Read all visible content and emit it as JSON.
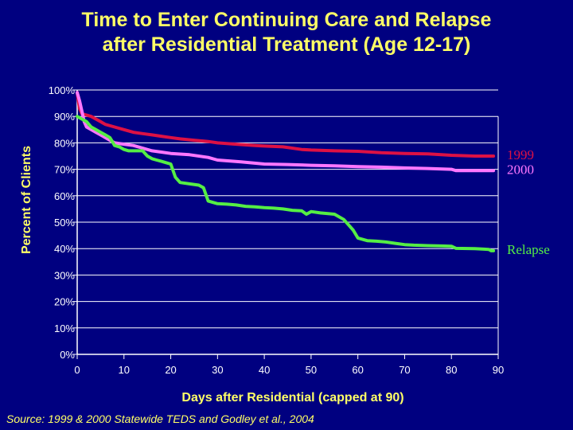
{
  "chart_data": {
    "type": "line",
    "title": [
      "Time to Enter Continuing Care and Relapse",
      "after Residential Treatment (Age 12-17)"
    ],
    "xlabel": "Days after Residential (capped at 90)",
    "ylabel": "Percent of Clients",
    "xlim": [
      0,
      90
    ],
    "ylim": [
      0,
      100
    ],
    "x_ticks": [
      0,
      10,
      20,
      30,
      40,
      50,
      60,
      70,
      80,
      90
    ],
    "y_ticks": [
      {
        "value": 0,
        "label": "0%"
      },
      {
        "value": 10,
        "label": "10%"
      },
      {
        "value": 20,
        "label": "20%"
      },
      {
        "value": 30,
        "label": "30%"
      },
      {
        "value": 40,
        "label": "40%"
      },
      {
        "value": 50,
        "label": "50%"
      },
      {
        "value": 60,
        "label": "60%"
      },
      {
        "value": 70,
        "label": "70%"
      },
      {
        "value": 80,
        "label": "80%"
      },
      {
        "value": 90,
        "label": "90%"
      },
      {
        "value": 100,
        "label": "100%"
      }
    ],
    "series": [
      {
        "name": "1999",
        "color": "#dd1144",
        "x": [
          0,
          0.5,
          1,
          2,
          3,
          4,
          5,
          6,
          8,
          10,
          12,
          14,
          16,
          18,
          20,
          22,
          25,
          28,
          30,
          34,
          38,
          40,
          44,
          48,
          50,
          55,
          60,
          65,
          70,
          75,
          80,
          85,
          89
        ],
        "y": [
          99,
          93,
          91,
          90.5,
          90,
          89,
          88,
          87,
          86,
          85,
          84,
          83.5,
          83,
          82.5,
          82,
          81.5,
          81,
          80.5,
          80,
          79.5,
          79,
          78.8,
          78.5,
          77.5,
          77.3,
          77,
          76.8,
          76.3,
          76,
          75.8,
          75.3,
          75,
          75
        ]
      },
      {
        "name": "2000",
        "color": "#ff77ff",
        "x": [
          0,
          0.5,
          1,
          1.5,
          2,
          3,
          4,
          5,
          6,
          7,
          8,
          10,
          12,
          14,
          16,
          18,
          20,
          24,
          28,
          30,
          35,
          40,
          45,
          50,
          55,
          60,
          65,
          70,
          75,
          80,
          81,
          85,
          89
        ],
        "y": [
          99,
          96,
          92,
          88,
          86,
          85,
          84,
          83,
          82,
          81,
          80,
          79.5,
          79,
          78,
          77,
          76.5,
          76,
          75.5,
          74.5,
          73.5,
          72.8,
          72,
          71.8,
          71.5,
          71.3,
          71,
          70.8,
          70.5,
          70.3,
          70,
          69.5,
          69.5,
          69.5
        ]
      },
      {
        "name": "Relapse",
        "color": "#55ee44",
        "x": [
          0,
          1,
          2,
          3,
          4,
          5,
          6,
          7,
          7.5,
          8,
          9,
          10,
          11,
          12,
          13,
          14,
          15,
          16,
          17,
          18,
          19,
          20,
          21,
          22,
          24,
          26,
          27,
          28,
          30,
          32,
          34,
          36,
          38,
          40,
          42,
          44,
          46,
          48,
          49,
          50,
          52,
          55,
          57,
          58,
          59,
          60,
          61,
          62,
          64,
          66,
          68,
          70,
          72,
          75,
          78,
          80,
          81,
          85,
          87,
          88,
          88.5,
          89
        ],
        "y": [
          90,
          89,
          88,
          86,
          85,
          84,
          83,
          82,
          80.5,
          79,
          78.5,
          77.5,
          77,
          77,
          77,
          77,
          75,
          74,
          73.5,
          73,
          72.5,
          72,
          67,
          65,
          64.5,
          64,
          63,
          58,
          57,
          56.8,
          56.5,
          56,
          55.8,
          55.5,
          55.3,
          55,
          54.5,
          54.3,
          53,
          54,
          53.5,
          53,
          51,
          49,
          47,
          44,
          43.5,
          43,
          42.8,
          42.5,
          42,
          41.5,
          41.3,
          41.1,
          41,
          40.9,
          40.1,
          40,
          39.8,
          39.7,
          39.2,
          39.2
        ]
      }
    ],
    "legend_labels": [
      {
        "text": "1999",
        "color": "#dd1144"
      },
      {
        "text": "2000",
        "color": "#ff77ff"
      },
      {
        "text": "Relapse",
        "color": "#55ee44"
      }
    ]
  },
  "source": "Source:  1999 & 2000 Statewide TEDS and Godley et al., 2004"
}
